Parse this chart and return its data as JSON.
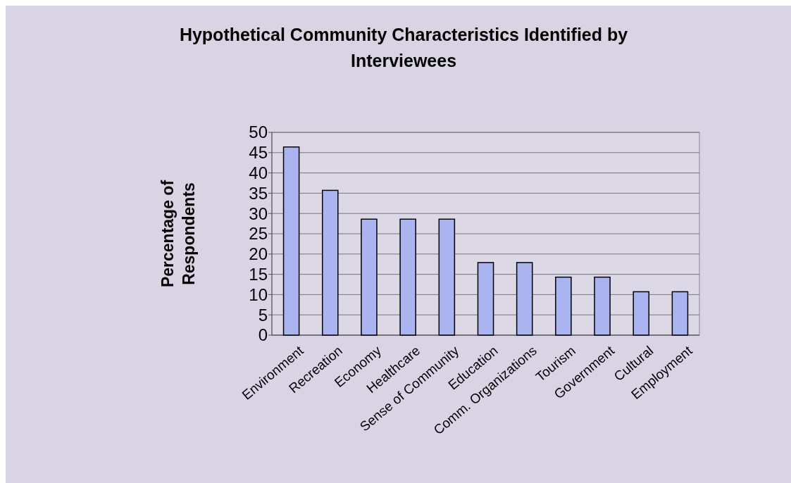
{
  "chart_data": {
    "type": "bar",
    "title": "Hypothetical Community Characteristics Identified by Interviewees",
    "ylabel": "Percentage of Respondents",
    "categories": [
      "Environment",
      "Recreation",
      "Economy",
      "Healthcare",
      "Sense of Community",
      "Education",
      "Comm. Organizations",
      "Tourism",
      "Government",
      "Cultural",
      "Employment"
    ],
    "values": [
      46.4,
      35.7,
      28.6,
      28.6,
      28.6,
      17.9,
      17.9,
      14.3,
      14.3,
      10.7,
      10.7
    ],
    "color": "#aab4f0",
    "ylim": [
      0,
      50
    ],
    "yticks": [
      0,
      5,
      10,
      15,
      20,
      25,
      30,
      35,
      40,
      45,
      50
    ],
    "grid": "y"
  }
}
